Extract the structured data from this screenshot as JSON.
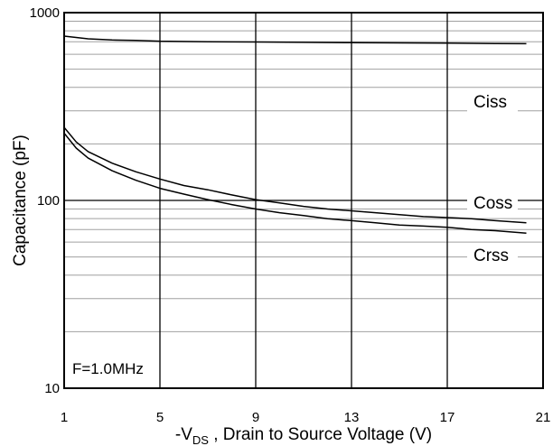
{
  "chart_data": {
    "type": "line",
    "title": "",
    "xlabel_prefix": "-V",
    "xlabel_sub": "DS",
    "xlabel_suffix": " , Drain to Source Voltage (V)",
    "ylabel": "Capacitance (pF)",
    "xlim": [
      1,
      21
    ],
    "ylim": [
      10,
      1000
    ],
    "yscale": "log",
    "x_ticks": [
      1,
      5,
      9,
      13,
      17,
      21
    ],
    "x_tick_labels": [
      "1",
      "5",
      "9",
      "13",
      "17",
      "21"
    ],
    "y_tick_labels": [
      "10",
      "100",
      "1000"
    ],
    "grid": true,
    "annotation": "F=1.0MHz",
    "series": [
      {
        "name": "Ciss",
        "x": [
          1,
          2,
          3,
          4,
          5,
          7,
          9,
          11,
          13,
          15,
          17,
          19,
          20.3
        ],
        "values": [
          750,
          725,
          715,
          712,
          705,
          700,
          698,
          695,
          692,
          690,
          688,
          685,
          683
        ]
      },
      {
        "name": "Coss",
        "x": [
          1,
          1.5,
          2,
          3,
          4,
          5,
          6,
          7,
          8,
          9,
          10,
          11,
          12,
          13,
          14,
          15,
          16,
          17,
          18,
          19,
          20.3
        ],
        "values": [
          245,
          205,
          182,
          158,
          142,
          130,
          120,
          114,
          107,
          101,
          97,
          93,
          90,
          88,
          86,
          84,
          82,
          81,
          80,
          78,
          76
        ]
      },
      {
        "name": "Crss",
        "x": [
          1,
          1.5,
          2,
          3,
          4,
          5,
          6,
          7,
          8,
          9,
          10,
          11,
          12,
          13,
          14,
          15,
          16,
          17,
          18,
          19,
          20.3
        ],
        "values": [
          228,
          190,
          168,
          144,
          128,
          116,
          108,
          101,
          95,
          90,
          86,
          83,
          80,
          78,
          76,
          74,
          73,
          72,
          70,
          69,
          67
        ]
      }
    ]
  }
}
